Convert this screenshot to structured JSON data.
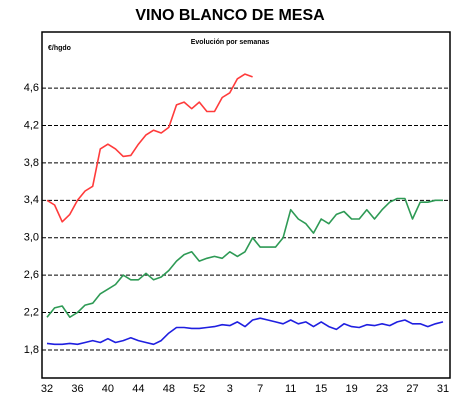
{
  "chart_data": {
    "type": "line",
    "title": "VINO BLANCO DE MESA",
    "subtitle": "Evolución por semanas",
    "ylabel": "€/hgdo",
    "categories": [
      "32",
      null,
      null,
      null,
      "36",
      null,
      null,
      null,
      "40",
      null,
      null,
      null,
      "44",
      null,
      null,
      null,
      "48",
      null,
      null,
      null,
      "52",
      null,
      null,
      null,
      "3",
      null,
      null,
      null,
      "7",
      null,
      null,
      null,
      "11",
      null,
      null,
      null,
      "15",
      null,
      null,
      null,
      "19",
      null,
      null,
      null,
      "23",
      null,
      null,
      null,
      "27",
      null,
      null,
      null,
      "31"
    ],
    "series": [
      {
        "color": "#ff3b3b",
        "values": [
          3.4,
          3.35,
          3.17,
          3.25,
          3.4,
          3.5,
          3.55,
          3.95,
          4.0,
          3.95,
          3.87,
          3.88,
          4.0,
          4.1,
          4.15,
          4.12,
          4.18,
          4.42,
          4.45,
          4.38,
          4.45,
          4.35,
          4.35,
          4.5,
          4.55,
          4.7,
          4.75,
          4.72,
          null,
          null,
          null,
          null,
          null,
          null,
          null,
          null,
          null,
          null,
          null,
          null,
          null,
          null,
          null,
          null,
          null,
          null,
          null,
          null,
          null,
          null,
          null,
          null,
          null
        ]
      },
      {
        "color": "#2e9a55",
        "values": [
          2.15,
          2.25,
          2.27,
          2.15,
          2.2,
          2.28,
          2.3,
          2.4,
          2.45,
          2.5,
          2.6,
          2.55,
          2.55,
          2.62,
          2.55,
          2.58,
          2.65,
          2.75,
          2.82,
          2.85,
          2.75,
          2.78,
          2.8,
          2.78,
          2.85,
          2.8,
          2.85,
          3.0,
          2.9,
          2.9,
          2.9,
          3.0,
          3.3,
          3.2,
          3.15,
          3.05,
          3.2,
          3.15,
          3.25,
          3.28,
          3.2,
          3.2,
          3.3,
          3.2,
          3.3,
          3.38,
          3.42,
          3.42,
          3.2,
          3.38,
          3.38,
          3.4,
          3.4
        ]
      },
      {
        "color": "#1f1fe0",
        "values": [
          1.87,
          1.86,
          1.86,
          1.87,
          1.86,
          1.88,
          1.9,
          1.88,
          1.92,
          1.88,
          1.9,
          1.93,
          1.9,
          1.88,
          1.86,
          1.9,
          1.98,
          2.04,
          2.04,
          2.03,
          2.03,
          2.04,
          2.05,
          2.07,
          2.06,
          2.1,
          2.05,
          2.12,
          2.14,
          2.12,
          2.1,
          2.08,
          2.12,
          2.08,
          2.1,
          2.05,
          2.1,
          2.05,
          2.02,
          2.08,
          2.05,
          2.04,
          2.07,
          2.06,
          2.08,
          2.06,
          2.1,
          2.12,
          2.08,
          2.08,
          2.05,
          2.08,
          2.1
        ]
      }
    ],
    "ylim": [
      1.5,
      5.2
    ],
    "yticks": [
      {
        "value": 1.8,
        "label": "1,8"
      },
      {
        "value": 2.2,
        "label": "2,2"
      },
      {
        "value": 2.6,
        "label": "2,6"
      },
      {
        "value": 3.0,
        "label": "3,0"
      },
      {
        "value": 3.4,
        "label": "3,4"
      },
      {
        "value": 3.8,
        "label": "3,8"
      },
      {
        "value": 4.2,
        "label": "4,2"
      },
      {
        "value": 4.6,
        "label": "4,6"
      }
    ],
    "grid": true
  }
}
